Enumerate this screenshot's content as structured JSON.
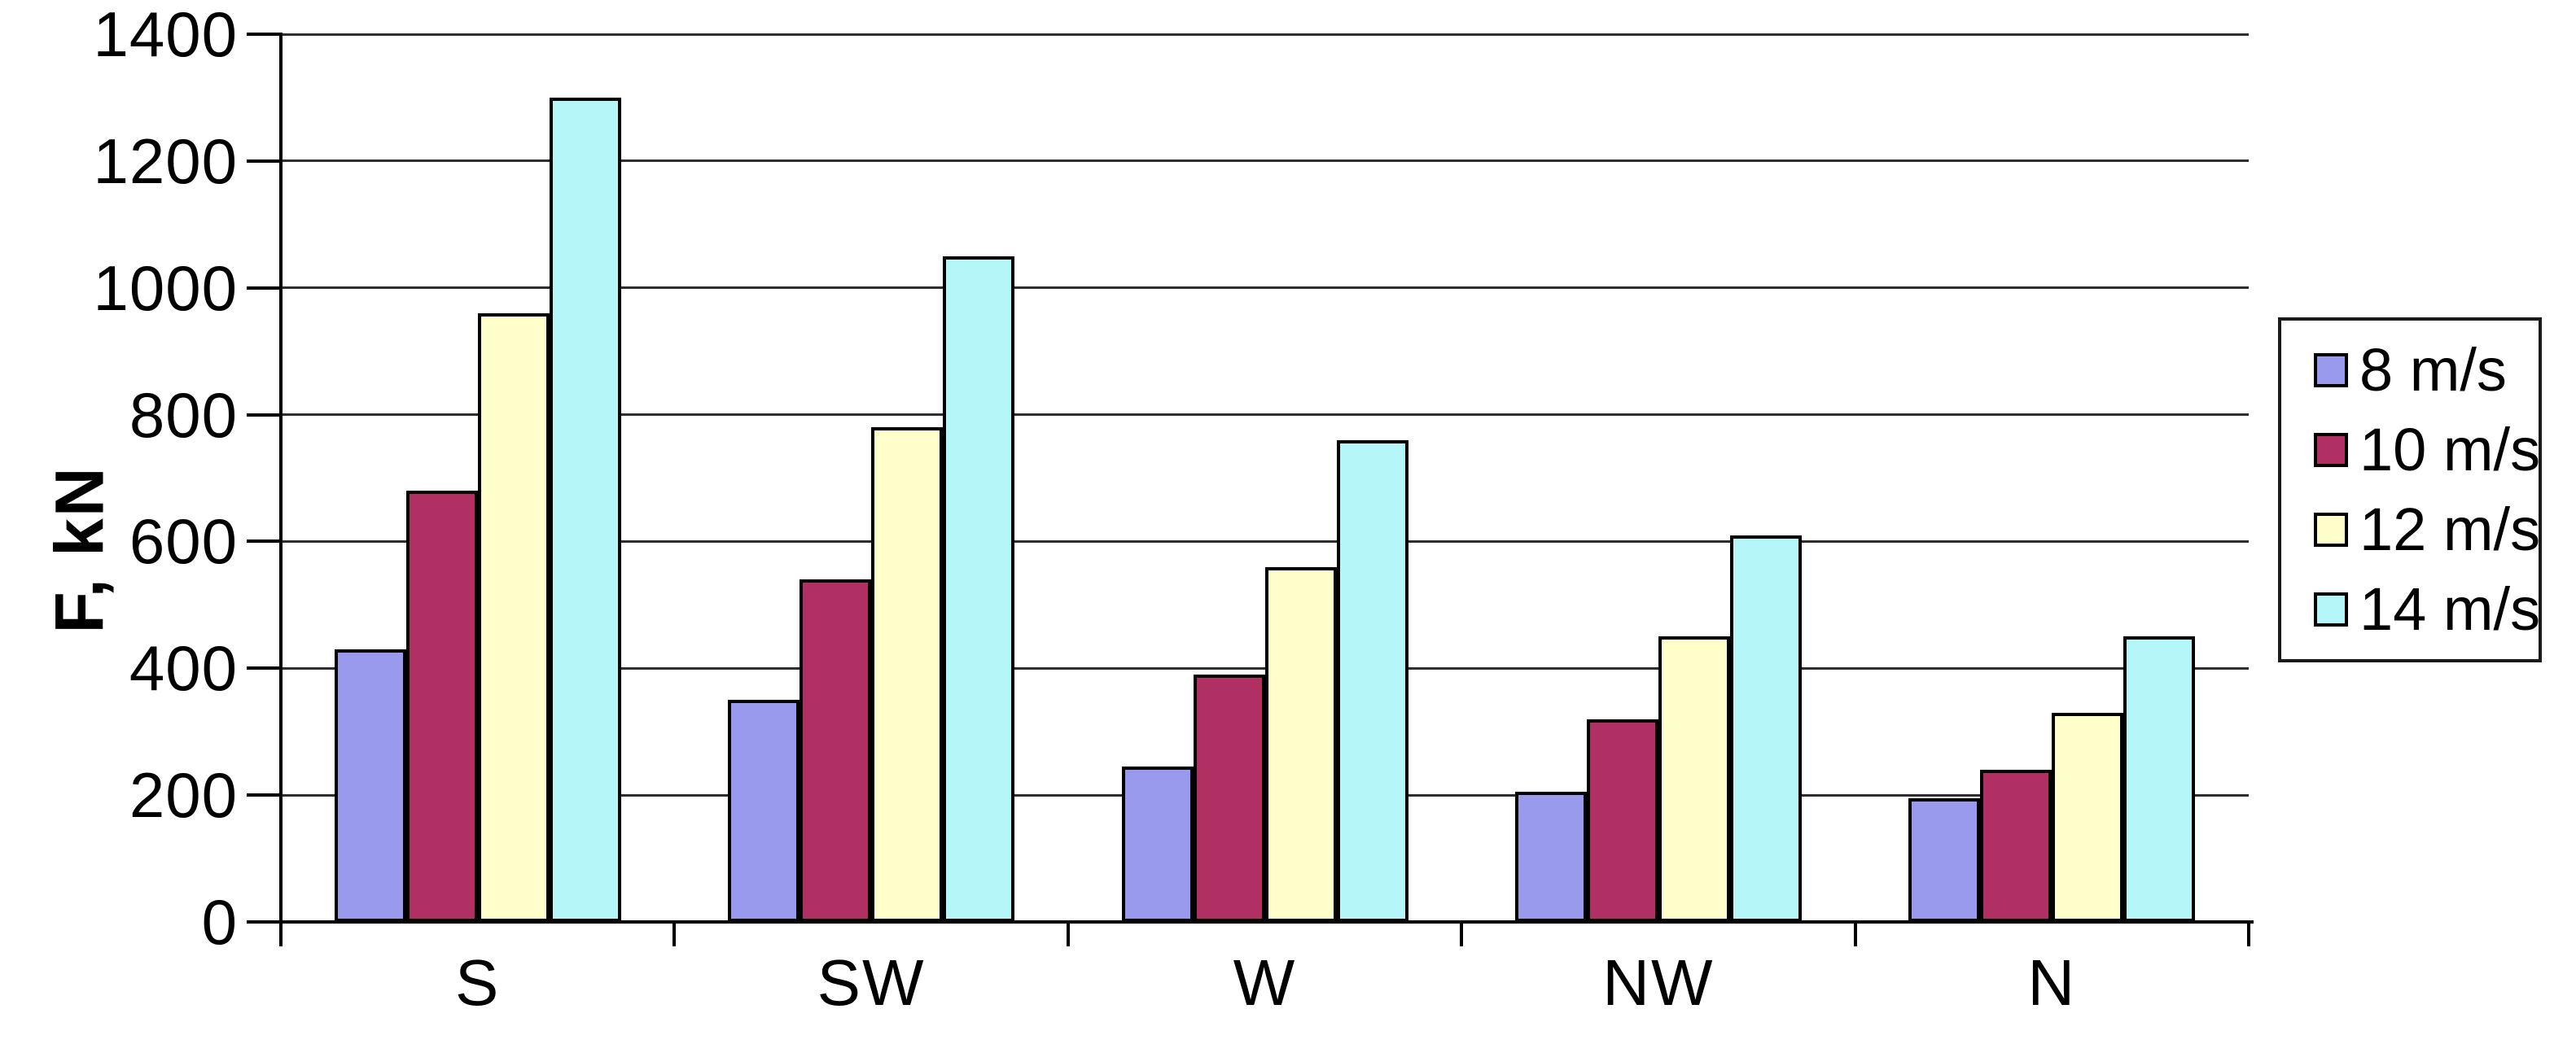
{
  "chart_data": {
    "type": "bar",
    "title": "",
    "ylabel": "F, kN",
    "xlabel": "",
    "categories": [
      "S",
      "SW",
      "W",
      "NW",
      "N"
    ],
    "series": [
      {
        "name": "8 m/s",
        "color": "#9999EE",
        "values": [
          430,
          350,
          245,
          205,
          195
        ]
      },
      {
        "name": "10 m/s",
        "color": "#B03064",
        "values": [
          680,
          540,
          390,
          320,
          240
        ]
      },
      {
        "name": "12 m/s",
        "color": "#FFFFCC",
        "values": [
          960,
          780,
          560,
          450,
          330
        ]
      },
      {
        "name": "14 m/s",
        "color": "#B5F7F9",
        "values": [
          1300,
          1050,
          760,
          610,
          450
        ]
      }
    ],
    "ylim": [
      0,
      1400
    ],
    "ytick_step": 200,
    "yticks": [
      "0",
      "200",
      "400",
      "600",
      "800",
      "1000",
      "1200",
      "1400"
    ],
    "grid": true,
    "legend_position": "right",
    "colors": {
      "axis": "#000000",
      "gridline": "#2e2e2e",
      "bar_outline": "#000000",
      "background": "#ffffff"
    }
  }
}
